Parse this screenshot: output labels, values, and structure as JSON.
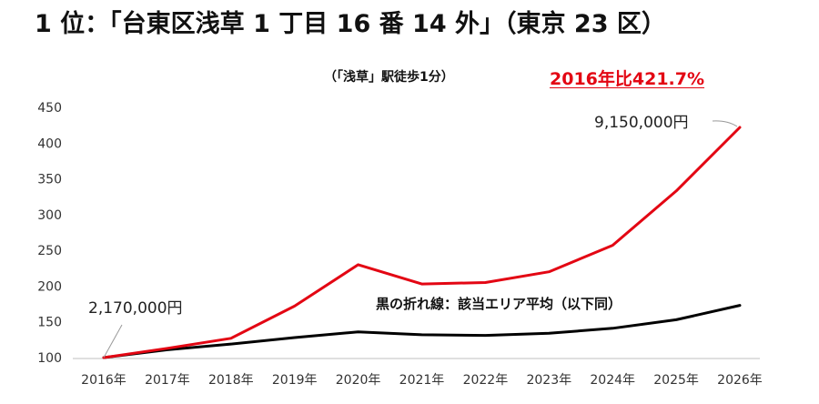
{
  "header": {
    "title": "1 位：「台東区浅草 1 丁目 16 番 14 外」（東京 23 区）",
    "subtitle": "（「浅草」駅徒歩1分）",
    "headline": "2016年比421.7%"
  },
  "colors": {
    "site_line": "#e30613",
    "area_average_line": "#000000",
    "headline": "#e30613"
  },
  "chart_data": {
    "type": "line",
    "categories": [
      "2016年",
      "2017年",
      "2018年",
      "2019年",
      "2020年",
      "2021年",
      "2022年",
      "2023年",
      "2024年",
      "2025年",
      "2026年"
    ],
    "ylim": [
      100,
      450
    ],
    "yticks": [
      100,
      150,
      200,
      250,
      300,
      350,
      400,
      450
    ],
    "grid": false,
    "series": [
      {
        "color": "#e30613",
        "values": [
          100,
          113,
          127,
          172,
          230,
          203,
          205,
          220,
          257,
          333,
          422
        ]
      },
      {
        "name": "黒の折れ線：該当エリア平均（以下同）",
        "color": "#000000",
        "values": [
          100,
          111,
          119,
          128,
          136,
          132,
          131,
          134,
          141,
          153,
          173
        ]
      }
    ],
    "annotations": [
      {
        "text": "2,170,000円",
        "category": "2016年",
        "value": 100
      },
      {
        "text": "9,150,000円",
        "category": "2026年",
        "value": 422
      }
    ]
  }
}
